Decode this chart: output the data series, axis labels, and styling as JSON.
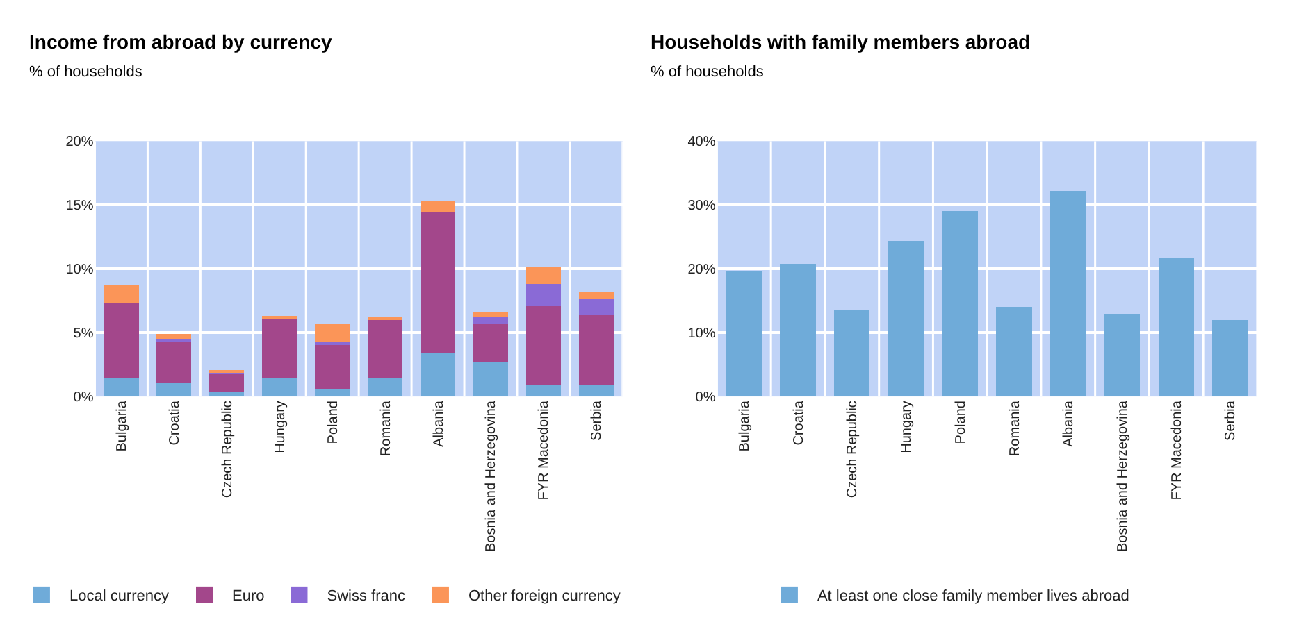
{
  "chart_data": [
    {
      "type": "bar",
      "title": "Income from abroad by currency",
      "ylabel": "% of households",
      "stacked": true,
      "categories": [
        "Bulgaria",
        "Croatia",
        "Czech Republic",
        "Hungary",
        "Poland",
        "Romania",
        "Albania",
        "Bosnia and Herzegovina",
        "FYR Macedonia",
        "Serbia"
      ],
      "series": [
        {
          "name": "Local currency",
          "color": "#6fabd9",
          "values": [
            1.5,
            1.1,
            0.4,
            1.4,
            0.6,
            1.5,
            3.4,
            2.7,
            0.9,
            0.9
          ]
        },
        {
          "name": "Euro",
          "color": "#a3478b",
          "values": [
            5.8,
            3.2,
            1.4,
            4.7,
            3.5,
            4.5,
            11.0,
            3.0,
            6.2,
            5.5
          ]
        },
        {
          "name": "Swiss franc",
          "color": "#8a6ad6",
          "values": [
            0,
            0.2,
            0.1,
            0,
            0.2,
            0,
            0,
            0.5,
            1.7,
            1.2
          ]
        },
        {
          "name": "Other foreign currency",
          "color": "#fb9558",
          "values": [
            1.4,
            0.4,
            0.1,
            0.1,
            1.4,
            0.1,
            0.9,
            0.4,
            1.4,
            0.6
          ]
        }
      ],
      "ylim": [
        0,
        20
      ],
      "yticks": [
        {
          "value": 0,
          "label": "0%"
        },
        {
          "value": 5,
          "label": "5%"
        },
        {
          "value": 10,
          "label": "10%"
        },
        {
          "value": 15,
          "label": "15%"
        },
        {
          "value": 20,
          "label": "20%"
        }
      ],
      "grid": true,
      "legend": "bottom"
    },
    {
      "type": "bar",
      "title": "Households with family members abroad",
      "ylabel": "% of households",
      "categories": [
        "Bulgaria",
        "Croatia",
        "Czech Republic",
        "Hungary",
        "Poland",
        "Romania",
        "Albania",
        "Bosnia and Herzegovina",
        "FYR Macedonia",
        "Serbia"
      ],
      "series": [
        {
          "name": "At least one close family member lives abroad",
          "color": "#6fabd9",
          "values": [
            19.6,
            20.8,
            13.5,
            24.4,
            29.0,
            14.0,
            32.2,
            13.0,
            21.7,
            12.0
          ]
        }
      ],
      "ylim": [
        0,
        40
      ],
      "yticks": [
        {
          "value": 0,
          "label": "0%"
        },
        {
          "value": 10,
          "label": "10%"
        },
        {
          "value": 20,
          "label": "20%"
        },
        {
          "value": 30,
          "label": "30%"
        },
        {
          "value": 40,
          "label": "40%"
        }
      ],
      "grid": true,
      "legend": "bottom"
    }
  ]
}
